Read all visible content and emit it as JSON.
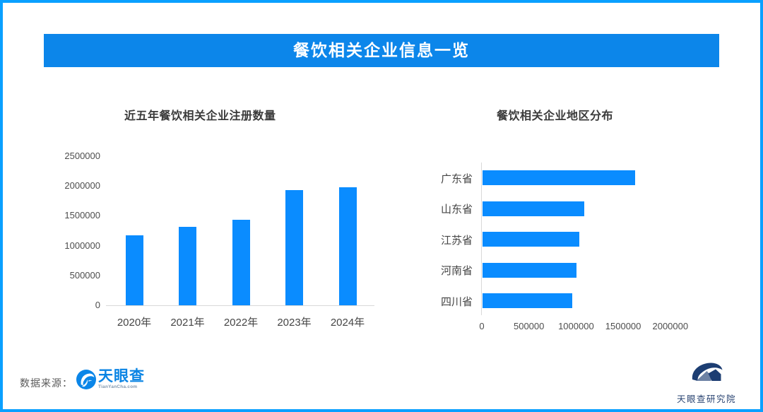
{
  "header": {
    "title": "餐饮相关企业信息一览"
  },
  "colors": {
    "frame_blue": "#0aa0ff",
    "banner_blue": "#0c86ea",
    "bar_blue": "#0a8cff",
    "logo_navy": "#1c3d72",
    "axis_gray": "#d9d9d9"
  },
  "chart_data": [
    {
      "type": "bar",
      "title": "近五年餐饮相关企业注册数量",
      "categories": [
        "2020年",
        "2021年",
        "2022年",
        "2023年",
        "2024年"
      ],
      "values": [
        1170000,
        1320000,
        1430000,
        1930000,
        1980000
      ],
      "ylim": [
        0,
        2500000
      ],
      "yticks": [
        0,
        500000,
        1000000,
        1500000,
        2000000,
        2500000
      ],
      "bar_color": "#0a8cff",
      "grid": false,
      "legend": false
    },
    {
      "type": "bar-horizontal",
      "title": "餐饮相关企业地区分布",
      "categories": [
        "广东省",
        "山东省",
        "江苏省",
        "河南省",
        "四川省"
      ],
      "values": [
        1620000,
        1080000,
        1030000,
        1000000,
        950000
      ],
      "xlim": [
        0,
        2000000
      ],
      "xticks": [
        0,
        500000,
        1000000,
        1500000,
        2000000
      ],
      "bar_color": "#0a8cff",
      "grid": false,
      "legend": false
    }
  ],
  "footer": {
    "source_label": "数据来源：",
    "logo_text": "天眼查",
    "logo_subtext": "TianYanCha.com",
    "research_logo_text": "天眼查研究院"
  }
}
